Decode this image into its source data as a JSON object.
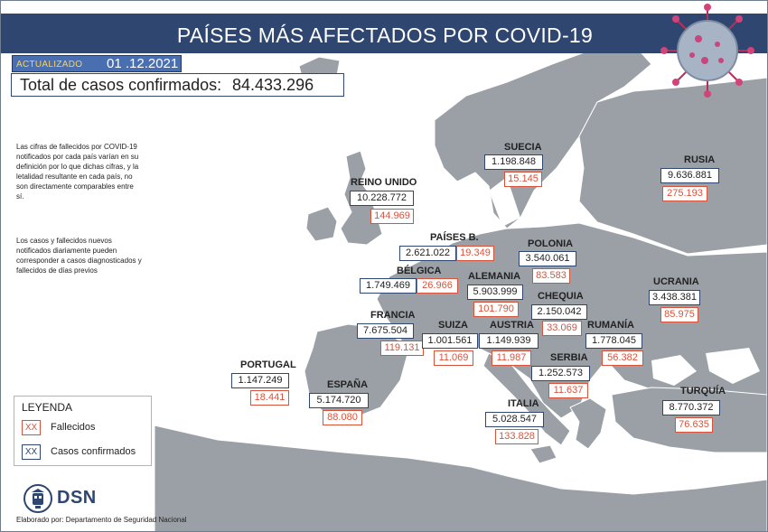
{
  "header": {
    "title": "PAÍSES MÁS AFECTADOS POR COVID-19"
  },
  "updated": {
    "label": "ACTUALIZADO",
    "date": "01 .12.2021"
  },
  "total": {
    "label": "Total de casos confirmados:",
    "value": "84.433.296"
  },
  "notes": [
    "Las cifras de fallecidos por COVID-19 notificados por cada país varían en su definición por lo que dichas cifras, y la letalidad resultante en cada país, no son directamente comparables entre sí.",
    "Los casos y fallecidos nuevos notificados diariamente pueden corresponder a casos diagnosticados y fallecidos de días previos"
  ],
  "countries": [
    {
      "name": "SUECIA",
      "cases": "1.198.848",
      "deaths": "15.145"
    },
    {
      "name": "RUSIA",
      "cases": "9.636.881",
      "deaths": "275.193"
    },
    {
      "name": "REINO UNIDO",
      "cases": "10.228.772",
      "deaths": "144.969"
    },
    {
      "name": "PAÍSES B.",
      "cases": "2.621.022",
      "deaths": "19.349"
    },
    {
      "name": "POLONIA",
      "cases": "3.540.061",
      "deaths": "83.583"
    },
    {
      "name": "BÉLGICA",
      "cases": "1.749.469",
      "deaths": "26.966"
    },
    {
      "name": "ALEMANIA",
      "cases": "5.903.999",
      "deaths": "101.790"
    },
    {
      "name": "UCRANIA",
      "cases": "3.438.381",
      "deaths": "85.975"
    },
    {
      "name": "CHEQUIA",
      "cases": "2.150.042",
      "deaths": "33.069"
    },
    {
      "name": "FRANCIA",
      "cases": "7.675.504",
      "deaths": "119.131"
    },
    {
      "name": "SUIZA",
      "cases": "1.001.561",
      "deaths": "11.069"
    },
    {
      "name": "AUSTRIA",
      "cases": "1.149.939",
      "deaths": "11.987"
    },
    {
      "name": "RUMANÍA",
      "cases": "1.778.045",
      "deaths": "56.382"
    },
    {
      "name": "PORTUGAL",
      "cases": "1.147.249",
      "deaths": "18.441"
    },
    {
      "name": "ESPAÑA",
      "cases": "5.174.720",
      "deaths": "88.080"
    },
    {
      "name": "SERBIA",
      "cases": "1.252.573",
      "deaths": "11.637"
    },
    {
      "name": "ITALIA",
      "cases": "5.028.547",
      "deaths": "133.828"
    },
    {
      "name": "TURQUÍA",
      "cases": "8.770.372",
      "deaths": "76.635"
    }
  ],
  "legend": {
    "title": "LEYENDA",
    "swatch_text": "XX",
    "deaths_label": "Fallecidos",
    "cases_label": "Casos confirmados",
    "deaths_color": "#d9533b",
    "cases_color": "#2f4770"
  },
  "footer": {
    "logo_text": "DSN",
    "credit": "Elaborado por: Departamento de Seguridad Nacional",
    "logo_icon": "dsn-emblem-icon"
  },
  "colors": {
    "header": "#2f4770",
    "sea": "#ffffff",
    "land": "#9aa0a6"
  },
  "decor": {
    "virus_icon": "coronavirus-icon"
  }
}
